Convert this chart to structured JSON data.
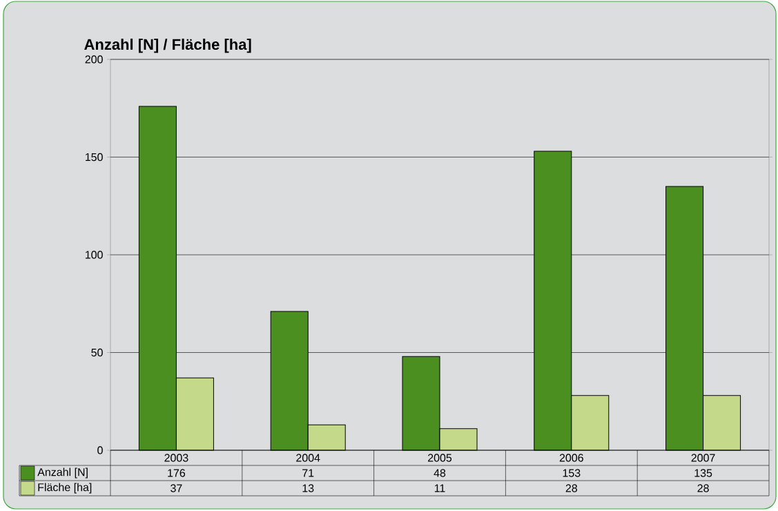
{
  "chart_data": {
    "type": "bar",
    "title": "Anzahl [N] / Fläche [ha]",
    "categories": [
      "2003",
      "2004",
      "2005",
      "2006",
      "2007"
    ],
    "series": [
      {
        "name": "Anzahl [N]",
        "color": "#4a8f20",
        "values": [
          176,
          71,
          48,
          153,
          135
        ]
      },
      {
        "name": "Fläche [ha]",
        "color": "#c5d98a",
        "values": [
          37,
          13,
          11,
          28,
          28
        ]
      }
    ],
    "ylim": [
      0,
      200
    ],
    "yticks": [
      0,
      50,
      100,
      150,
      200
    ],
    "grid": "y",
    "legend": "bottom",
    "data_labels": true
  }
}
